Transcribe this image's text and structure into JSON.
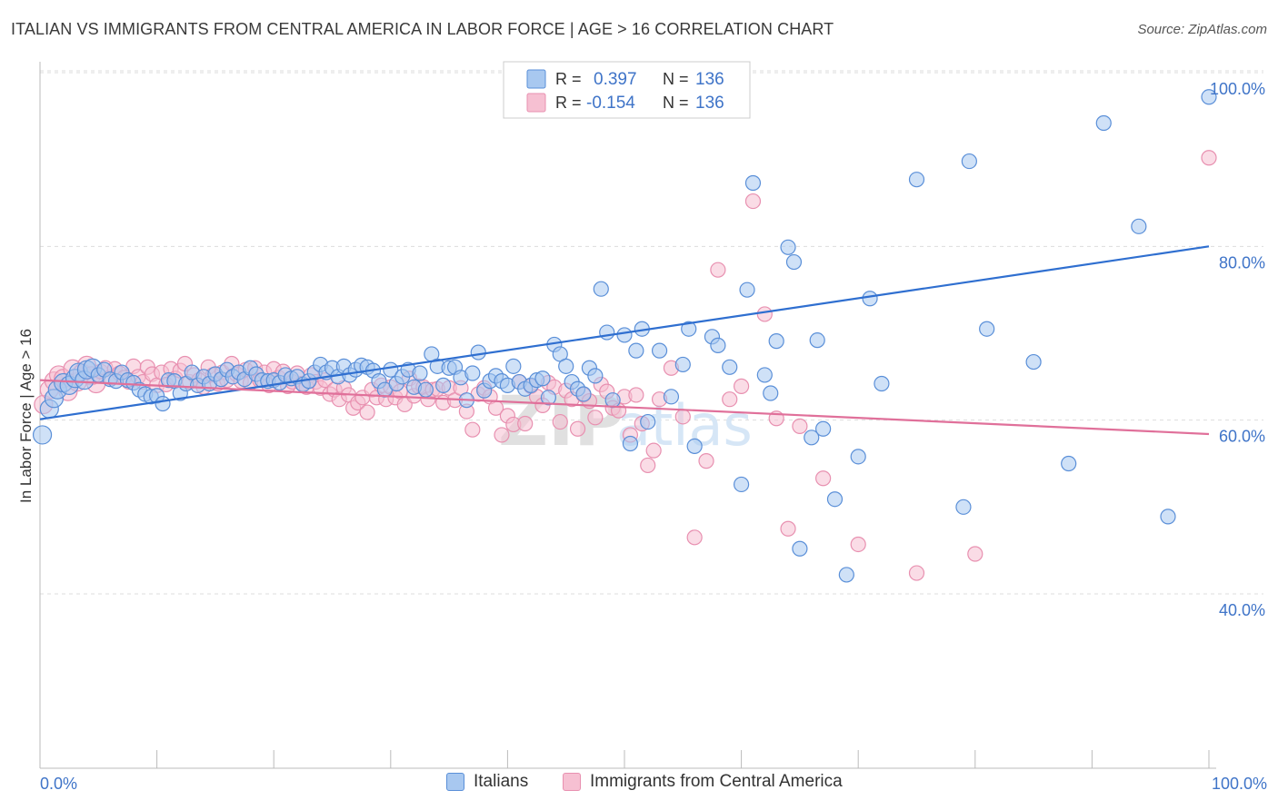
{
  "header": {
    "title": "ITALIAN VS IMMIGRANTS FROM CENTRAL AMERICA IN LABOR FORCE | AGE > 16 CORRELATION CHART",
    "source": "Source: ZipAtlas.com"
  },
  "watermark": {
    "zip": "ZIP",
    "atlas": "atlas"
  },
  "colors": {
    "blue_fill": "#a8c8f0",
    "blue_stroke": "#5a8fd8",
    "blue_line": "#2f6fd0",
    "pink_fill": "#f6c0d2",
    "pink_stroke": "#e890b0",
    "pink_line": "#e0709a",
    "axis_text": "#3f74c8",
    "grid": "#dddddd"
  },
  "legend_stats": {
    "rows": [
      {
        "r_label": "R =",
        "r_value": "0.397",
        "n_label": "N =",
        "n_value": "136"
      },
      {
        "r_label": "R =",
        "r_value": "-0.154",
        "n_label": "N =",
        "n_value": "136"
      }
    ]
  },
  "chart_data": {
    "type": "scatter",
    "title": "ITALIAN VS IMMIGRANTS FROM CENTRAL AMERICA IN LABOR FORCE | AGE > 16 CORRELATION CHART",
    "xlabel": "",
    "ylabel": "In Labor Force | Age > 16",
    "xlim": [
      0,
      100
    ],
    "ylim": [
      20,
      102
    ],
    "x_tick_labels": [
      "0.0%",
      "100.0%"
    ],
    "y_ticks": [
      40,
      60,
      80,
      100
    ],
    "y_tick_labels": [
      "40.0%",
      "60.0%",
      "80.0%",
      "100.0%"
    ],
    "legend": {
      "placement": "bottom-center",
      "entries": [
        "Italians",
        "Immigrants from Central America"
      ]
    },
    "series": [
      {
        "name": "Italians",
        "r": 0.397,
        "n": 136,
        "trend": {
          "x": [
            0,
            100
          ],
          "y": [
            60.1,
            80.0
          ]
        },
        "points": [
          [
            0.2,
            58.3
          ],
          [
            0.8,
            61.3
          ],
          [
            1.2,
            62.5
          ],
          [
            1.5,
            63.5
          ],
          [
            2.0,
            64.3
          ],
          [
            2.5,
            64.0
          ],
          [
            3.0,
            64.8
          ],
          [
            3.3,
            65.5
          ],
          [
            3.8,
            64.6
          ],
          [
            4.0,
            65.8
          ],
          [
            4.5,
            66.0
          ],
          [
            5.0,
            65.2
          ],
          [
            5.5,
            65.8
          ],
          [
            6.0,
            64.7
          ],
          [
            6.5,
            64.5
          ],
          [
            7.0,
            65.5
          ],
          [
            7.5,
            64.6
          ],
          [
            8.0,
            64.3
          ],
          [
            8.5,
            63.5
          ],
          [
            9.0,
            63.0
          ],
          [
            9.5,
            62.7
          ],
          [
            10.0,
            62.8
          ],
          [
            10.5,
            61.9
          ],
          [
            11.0,
            64.6
          ],
          [
            11.5,
            64.5
          ],
          [
            12.0,
            63.1
          ],
          [
            12.5,
            64.2
          ],
          [
            13.0,
            65.5
          ],
          [
            13.5,
            64.0
          ],
          [
            14.0,
            65.0
          ],
          [
            14.5,
            64.2
          ],
          [
            15.0,
            65.3
          ],
          [
            15.5,
            64.7
          ],
          [
            16.0,
            65.8
          ],
          [
            16.5,
            65.0
          ],
          [
            17.0,
            65.5
          ],
          [
            17.5,
            64.7
          ],
          [
            18.0,
            66.0
          ],
          [
            18.5,
            65.3
          ],
          [
            19.0,
            64.6
          ],
          [
            19.5,
            64.5
          ],
          [
            20.0,
            64.6
          ],
          [
            20.5,
            64.3
          ],
          [
            21.0,
            65.2
          ],
          [
            21.5,
            64.8
          ],
          [
            22.0,
            65.0
          ],
          [
            22.5,
            64.1
          ],
          [
            23.0,
            64.5
          ],
          [
            23.5,
            65.5
          ],
          [
            24.0,
            66.4
          ],
          [
            24.5,
            65.5
          ],
          [
            25.0,
            66.0
          ],
          [
            25.5,
            65.0
          ],
          [
            26.0,
            66.2
          ],
          [
            26.5,
            65.2
          ],
          [
            27.0,
            65.8
          ],
          [
            27.5,
            66.3
          ],
          [
            28.0,
            66.1
          ],
          [
            28.5,
            65.7
          ],
          [
            29.0,
            64.5
          ],
          [
            29.5,
            63.5
          ],
          [
            30.0,
            65.8
          ],
          [
            30.5,
            64.2
          ],
          [
            31.0,
            65.0
          ],
          [
            31.5,
            65.8
          ],
          [
            32.0,
            63.8
          ],
          [
            32.5,
            65.4
          ],
          [
            33.0,
            63.5
          ],
          [
            33.5,
            67.6
          ],
          [
            34.0,
            66.2
          ],
          [
            34.5,
            64.0
          ],
          [
            35.0,
            66.0
          ],
          [
            35.5,
            66.1
          ],
          [
            36.0,
            64.9
          ],
          [
            36.5,
            62.3
          ],
          [
            37.0,
            65.4
          ],
          [
            37.5,
            67.8
          ],
          [
            38.0,
            63.4
          ],
          [
            38.5,
            64.5
          ],
          [
            39.0,
            65.1
          ],
          [
            39.5,
            64.5
          ],
          [
            40.0,
            64.0
          ],
          [
            40.5,
            66.2
          ],
          [
            41.0,
            64.4
          ],
          [
            41.5,
            63.6
          ],
          [
            42.0,
            64.0
          ],
          [
            42.5,
            64.6
          ],
          [
            43.0,
            64.8
          ],
          [
            43.5,
            62.6
          ],
          [
            44.0,
            68.7
          ],
          [
            44.5,
            67.6
          ],
          [
            45.0,
            66.2
          ],
          [
            45.5,
            64.4
          ],
          [
            46.0,
            63.6
          ],
          [
            46.5,
            63.0
          ],
          [
            47.0,
            66.0
          ],
          [
            47.5,
            65.1
          ],
          [
            48.0,
            75.1
          ],
          [
            48.5,
            70.1
          ],
          [
            49.0,
            62.3
          ],
          [
            50.0,
            69.8
          ],
          [
            50.5,
            57.3
          ],
          [
            51.0,
            68.0
          ],
          [
            51.5,
            70.5
          ],
          [
            52.0,
            59.8
          ],
          [
            53.0,
            68.0
          ],
          [
            54.0,
            62.7
          ],
          [
            55.0,
            66.4
          ],
          [
            55.5,
            70.5
          ],
          [
            56.0,
            57.0
          ],
          [
            57.5,
            69.6
          ],
          [
            58.0,
            68.6
          ],
          [
            59.0,
            66.1
          ],
          [
            60.0,
            52.6
          ],
          [
            60.5,
            75.0
          ],
          [
            61.0,
            87.3
          ],
          [
            62.0,
            65.2
          ],
          [
            62.5,
            63.1
          ],
          [
            63.0,
            69.1
          ],
          [
            64.0,
            79.9
          ],
          [
            64.5,
            78.2
          ],
          [
            65.0,
            45.2
          ],
          [
            66.0,
            58.0
          ],
          [
            66.5,
            69.2
          ],
          [
            67.0,
            59.0
          ],
          [
            68.0,
            50.9
          ],
          [
            69.0,
            42.2
          ],
          [
            70.0,
            55.8
          ],
          [
            71.0,
            74.0
          ],
          [
            72.0,
            64.2
          ],
          [
            75.0,
            87.7
          ],
          [
            79.0,
            50.0
          ],
          [
            79.5,
            89.8
          ],
          [
            81.0,
            70.5
          ],
          [
            85.0,
            66.7
          ],
          [
            88.0,
            55.0
          ],
          [
            91.0,
            94.2
          ],
          [
            94.0,
            82.3
          ],
          [
            96.5,
            48.9
          ],
          [
            100.0,
            97.2
          ]
        ]
      },
      {
        "name": "Immigrants from Central America",
        "r": -0.154,
        "n": 136,
        "trend": {
          "x": [
            0,
            100
          ],
          "y": [
            64.6,
            58.4
          ]
        },
        "points": [
          [
            0.3,
            61.8
          ],
          [
            0.8,
            63.5
          ],
          [
            1.2,
            64.5
          ],
          [
            1.6,
            65.2
          ],
          [
            2.0,
            64.8
          ],
          [
            2.4,
            63.3
          ],
          [
            2.8,
            65.9
          ],
          [
            3.2,
            64.4
          ],
          [
            3.6,
            65.4
          ],
          [
            4.0,
            66.3
          ],
          [
            4.4,
            65.1
          ],
          [
            4.8,
            64.2
          ],
          [
            5.2,
            65.6
          ],
          [
            5.6,
            66.0
          ],
          [
            6.0,
            64.9
          ],
          [
            6.4,
            65.9
          ],
          [
            6.8,
            65.4
          ],
          [
            7.2,
            64.9
          ],
          [
            7.6,
            64.4
          ],
          [
            8.0,
            66.2
          ],
          [
            8.4,
            65.0
          ],
          [
            8.8,
            64.4
          ],
          [
            9.2,
            66.1
          ],
          [
            9.6,
            65.3
          ],
          [
            10.0,
            64.0
          ],
          [
            10.4,
            65.5
          ],
          [
            10.8,
            64.1
          ],
          [
            11.2,
            65.9
          ],
          [
            11.6,
            64.8
          ],
          [
            12.0,
            65.7
          ],
          [
            12.4,
            66.5
          ],
          [
            12.8,
            64.4
          ],
          [
            13.2,
            65.2
          ],
          [
            13.6,
            64.6
          ],
          [
            14.0,
            63.8
          ],
          [
            14.4,
            66.1
          ],
          [
            14.8,
            65.2
          ],
          [
            15.2,
            64.2
          ],
          [
            15.6,
            65.5
          ],
          [
            16.0,
            64.6
          ],
          [
            16.4,
            66.5
          ],
          [
            16.8,
            65.3
          ],
          [
            17.2,
            64.5
          ],
          [
            17.6,
            65.8
          ],
          [
            18.0,
            64.3
          ],
          [
            18.4,
            66.0
          ],
          [
            18.8,
            64.6
          ],
          [
            19.2,
            65.5
          ],
          [
            19.6,
            64.0
          ],
          [
            20.0,
            65.9
          ],
          [
            20.4,
            64.9
          ],
          [
            20.8,
            65.6
          ],
          [
            21.2,
            63.9
          ],
          [
            21.6,
            64.4
          ],
          [
            22.0,
            65.4
          ],
          [
            22.4,
            64.2
          ],
          [
            22.8,
            63.8
          ],
          [
            23.2,
            65.2
          ],
          [
            23.6,
            64.4
          ],
          [
            24.0,
            63.7
          ],
          [
            24.4,
            64.6
          ],
          [
            24.8,
            63.0
          ],
          [
            25.2,
            63.5
          ],
          [
            25.6,
            62.4
          ],
          [
            26.0,
            63.7
          ],
          [
            26.4,
            62.9
          ],
          [
            26.8,
            61.4
          ],
          [
            27.2,
            62.0
          ],
          [
            27.6,
            62.6
          ],
          [
            28.0,
            60.9
          ],
          [
            28.4,
            63.5
          ],
          [
            28.8,
            62.6
          ],
          [
            29.2,
            64.0
          ],
          [
            29.6,
            62.4
          ],
          [
            30.0,
            63.8
          ],
          [
            30.4,
            62.6
          ],
          [
            30.8,
            63.3
          ],
          [
            31.2,
            61.8
          ],
          [
            31.6,
            64.8
          ],
          [
            32.0,
            62.8
          ],
          [
            32.4,
            63.9
          ],
          [
            32.8,
            63.8
          ],
          [
            33.2,
            62.4
          ],
          [
            33.6,
            63.5
          ],
          [
            34.0,
            63.6
          ],
          [
            34.5,
            62.0
          ],
          [
            35.0,
            63.7
          ],
          [
            35.5,
            62.3
          ],
          [
            36.0,
            63.7
          ],
          [
            36.5,
            61.0
          ],
          [
            37.0,
            58.9
          ],
          [
            37.5,
            63.0
          ],
          [
            38.0,
            63.7
          ],
          [
            38.5,
            62.7
          ],
          [
            39.0,
            61.4
          ],
          [
            39.5,
            58.3
          ],
          [
            40.0,
            60.5
          ],
          [
            40.5,
            59.5
          ],
          [
            41.0,
            64.4
          ],
          [
            41.5,
            59.6
          ],
          [
            42.0,
            63.9
          ],
          [
            42.5,
            62.7
          ],
          [
            43.0,
            61.7
          ],
          [
            43.5,
            64.3
          ],
          [
            44.0,
            63.8
          ],
          [
            44.5,
            59.8
          ],
          [
            45.0,
            63.4
          ],
          [
            45.5,
            62.4
          ],
          [
            46.0,
            59.0
          ],
          [
            46.5,
            62.9
          ],
          [
            47.0,
            62.2
          ],
          [
            47.5,
            60.3
          ],
          [
            48.0,
            64.1
          ],
          [
            48.5,
            63.3
          ],
          [
            49.0,
            61.4
          ],
          [
            49.5,
            61.1
          ],
          [
            50.0,
            62.7
          ],
          [
            50.5,
            58.3
          ],
          [
            51.0,
            62.9
          ],
          [
            51.5,
            59.6
          ],
          [
            52.0,
            54.8
          ],
          [
            52.5,
            56.5
          ],
          [
            53.0,
            62.4
          ],
          [
            54.0,
            66.0
          ],
          [
            55.0,
            60.4
          ],
          [
            56.0,
            46.5
          ],
          [
            57.0,
            55.3
          ],
          [
            58.0,
            77.3
          ],
          [
            59.0,
            62.4
          ],
          [
            60.0,
            63.9
          ],
          [
            61.0,
            85.2
          ],
          [
            62.0,
            72.2
          ],
          [
            63.0,
            60.2
          ],
          [
            64.0,
            47.5
          ],
          [
            65.0,
            59.3
          ],
          [
            67.0,
            53.3
          ],
          [
            70.0,
            45.7
          ],
          [
            75.0,
            42.4
          ],
          [
            80.0,
            44.6
          ],
          [
            100.0,
            90.2
          ]
        ]
      }
    ]
  },
  "legend_bottom": {
    "items": [
      {
        "label": "Italians"
      },
      {
        "label": "Immigrants from Central America"
      }
    ]
  }
}
